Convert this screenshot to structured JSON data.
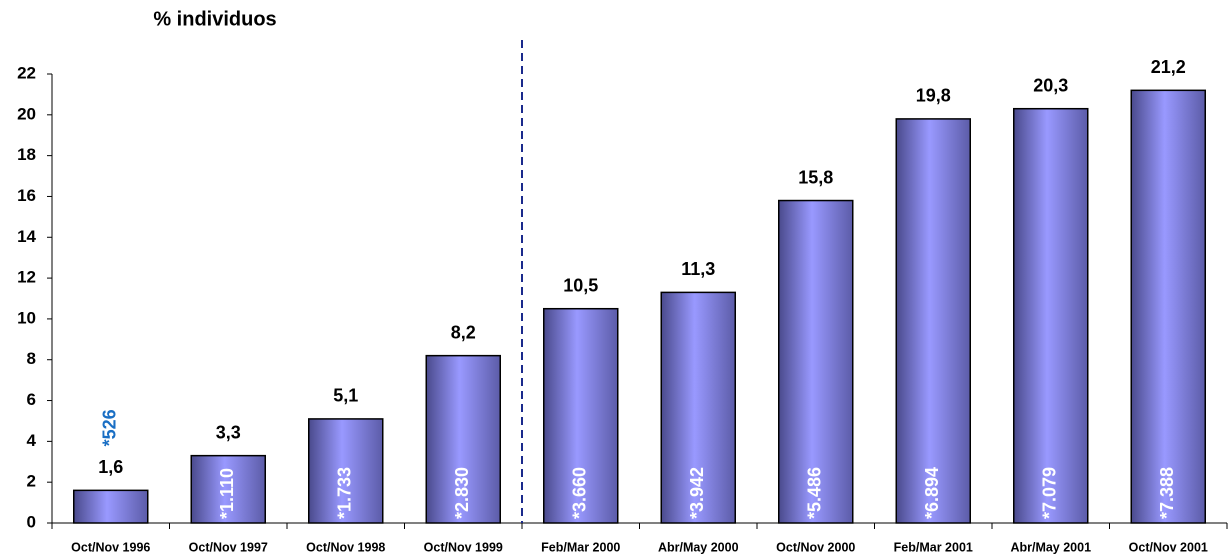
{
  "chart_data": {
    "type": "bar",
    "y_label": "% individuos",
    "categories": [
      "Oct/Nov 1996",
      "Oct/Nov 1997",
      "Oct/Nov 1998",
      "Oct/Nov 1999",
      "Feb/Mar 2000",
      "Abr/May 2000",
      "Oct/Nov 2000",
      "Feb/Mar 2001",
      "Abr/May 2001",
      "Oct/Nov 2001"
    ],
    "values": [
      1.6,
      3.3,
      5.1,
      8.2,
      10.5,
      11.3,
      15.8,
      19.8,
      20.3,
      21.2
    ],
    "value_labels": [
      "1,6",
      "3,3",
      "5,1",
      "8,2",
      "10,5",
      "11,3",
      "15,8",
      "19,8",
      "20,3",
      "21,2"
    ],
    "sample_labels": [
      "*526",
      "*1.110",
      "*1.733",
      "*2.830",
      "*3.660",
      "*3.942",
      "*5.486",
      "*6.894",
      "*7.079",
      "*7.388"
    ],
    "color": "#9999ff",
    "ylim": [
      0,
      22
    ],
    "yticks": [
      0,
      2,
      4,
      6,
      8,
      10,
      12,
      14,
      16,
      18,
      20,
      22
    ]
  }
}
